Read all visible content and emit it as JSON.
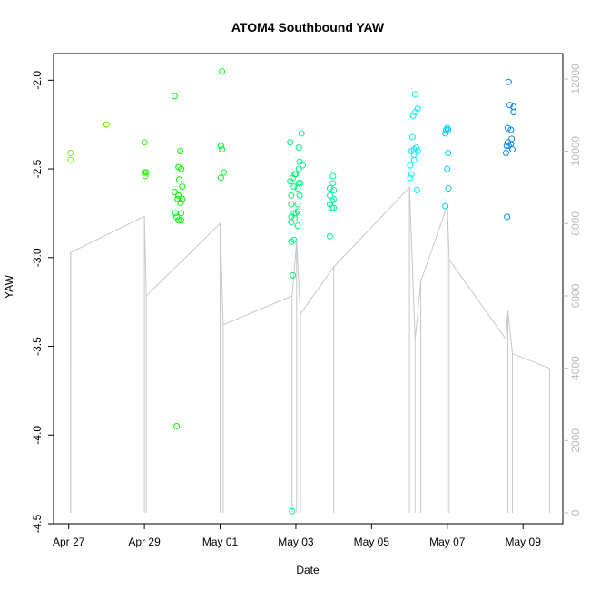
{
  "chart_data": {
    "type": "scatter",
    "title": "ATOM4 Southbound YAW",
    "xlabel": "Date",
    "ylabel": "YAW",
    "x_unit": "days since Apr 27",
    "xlim": [
      -0.4,
      13.05
    ],
    "ylim": [
      -4.5,
      -1.85
    ],
    "y2lim": [
      -300,
      12700
    ],
    "x_ticks": [
      {
        "value": 0,
        "label": "Apr 27"
      },
      {
        "value": 2,
        "label": "Apr 29"
      },
      {
        "value": 4,
        "label": "May 01"
      },
      {
        "value": 6,
        "label": "May 03"
      },
      {
        "value": 8,
        "label": "May 05"
      },
      {
        "value": 10,
        "label": "May 07"
      },
      {
        "value": 12,
        "label": "May 09"
      }
    ],
    "y_ticks": [
      {
        "value": -4.5,
        "label": "-4.5"
      },
      {
        "value": -4.0,
        "label": "-4.0"
      },
      {
        "value": -3.5,
        "label": "-3.5"
      },
      {
        "value": -3.0,
        "label": "-3.0"
      },
      {
        "value": -2.5,
        "label": "-2.5"
      },
      {
        "value": -2.0,
        "label": "-2.0"
      }
    ],
    "y2_ticks": [
      {
        "value": 0,
        "label": "0"
      },
      {
        "value": 2000,
        "label": "2000"
      },
      {
        "value": 4000,
        "label": "4000"
      },
      {
        "value": 6000,
        "label": "6000"
      },
      {
        "value": 8000,
        "label": "8000"
      },
      {
        "value": 10000,
        "label": "10000"
      },
      {
        "value": 12000,
        "label": "12000"
      }
    ],
    "point_color_scale": "rainbow hue by date (green to blue)",
    "line_color": "#c8c8c8",
    "series": [
      {
        "name": "YAW",
        "axis": "left",
        "points": [
          [
            0.05,
            -2.41
          ],
          [
            0.05,
            -2.45
          ],
          [
            1.0,
            -2.25
          ],
          [
            2.0,
            -2.35
          ],
          [
            2.0,
            -2.52
          ],
          [
            2.02,
            -2.54
          ],
          [
            2.05,
            -2.52
          ],
          [
            2.8,
            -2.09
          ],
          [
            2.8,
            -2.63
          ],
          [
            2.82,
            -2.75
          ],
          [
            2.85,
            -2.77
          ],
          [
            2.85,
            -3.95
          ],
          [
            2.88,
            -2.67
          ],
          [
            2.9,
            -2.49
          ],
          [
            2.9,
            -2.65
          ],
          [
            2.9,
            -2.79
          ],
          [
            2.92,
            -2.56
          ],
          [
            2.95,
            -2.4
          ],
          [
            2.95,
            -2.69
          ],
          [
            2.97,
            -2.5
          ],
          [
            2.97,
            -2.75
          ],
          [
            2.97,
            -2.79
          ],
          [
            3.0,
            -2.6
          ],
          [
            3.0,
            -2.67
          ],
          [
            4.05,
            -1.95
          ],
          [
            4.02,
            -2.37
          ],
          [
            4.05,
            -2.39
          ],
          [
            4.02,
            -2.55
          ],
          [
            4.1,
            -2.52
          ],
          [
            5.85,
            -2.35
          ],
          [
            5.85,
            -2.57
          ],
          [
            5.88,
            -2.65
          ],
          [
            5.88,
            -2.7
          ],
          [
            5.88,
            -2.77
          ],
          [
            5.88,
            -2.8
          ],
          [
            5.88,
            -2.91
          ],
          [
            5.9,
            -4.43
          ],
          [
            5.92,
            -2.55
          ],
          [
            5.92,
            -3.1
          ],
          [
            5.95,
            -2.6
          ],
          [
            5.95,
            -2.75
          ],
          [
            5.95,
            -2.9
          ],
          [
            5.97,
            -2.53
          ],
          [
            5.97,
            -2.78
          ],
          [
            6.0,
            -2.53
          ],
          [
            6.0,
            -2.75
          ],
          [
            6.05,
            -2.61
          ],
          [
            6.05,
            -2.7
          ],
          [
            6.05,
            -2.74
          ],
          [
            6.05,
            -2.82
          ],
          [
            6.08,
            -2.38
          ],
          [
            6.08,
            -2.5
          ],
          [
            6.08,
            -2.58
          ],
          [
            6.1,
            -2.46
          ],
          [
            6.1,
            -2.65
          ],
          [
            6.12,
            -2.58
          ],
          [
            6.15,
            -2.3
          ],
          [
            6.18,
            -2.48
          ],
          [
            6.9,
            -2.61
          ],
          [
            6.9,
            -2.65
          ],
          [
            6.9,
            -2.7
          ],
          [
            6.9,
            -2.88
          ],
          [
            6.95,
            -2.68
          ],
          [
            6.95,
            -2.72
          ],
          [
            6.98,
            -2.54
          ],
          [
            6.98,
            -2.58
          ],
          [
            7.0,
            -2.62
          ],
          [
            7.0,
            -2.67
          ],
          [
            7.0,
            -2.72
          ],
          [
            9.02,
            -2.48
          ],
          [
            9.02,
            -2.55
          ],
          [
            9.05,
            -2.4
          ],
          [
            9.05,
            -2.53
          ],
          [
            9.08,
            -2.32
          ],
          [
            9.1,
            -2.2
          ],
          [
            9.12,
            -2.39
          ],
          [
            9.12,
            -2.42
          ],
          [
            9.12,
            -2.45
          ],
          [
            9.15,
            -2.08
          ],
          [
            9.15,
            -2.18
          ],
          [
            9.18,
            -2.38
          ],
          [
            9.2,
            -2.62
          ],
          [
            9.22,
            -2.16
          ],
          [
            9.22,
            -2.4
          ],
          [
            9.95,
            -2.3
          ],
          [
            9.95,
            -2.71
          ],
          [
            9.97,
            -2.28
          ],
          [
            10.0,
            -2.27
          ],
          [
            10.0,
            -2.5
          ],
          [
            10.02,
            -2.28
          ],
          [
            10.02,
            -2.41
          ],
          [
            10.03,
            -2.61
          ],
          [
            11.55,
            -2.41
          ],
          [
            11.57,
            -2.37
          ],
          [
            11.58,
            -2.77
          ],
          [
            11.6,
            -2.27
          ],
          [
            11.6,
            -2.35
          ],
          [
            11.62,
            -2.01
          ],
          [
            11.62,
            -2.37
          ],
          [
            11.65,
            -2.14
          ],
          [
            11.68,
            -2.28
          ],
          [
            11.68,
            -2.36
          ],
          [
            11.7,
            -2.33
          ],
          [
            11.72,
            -2.39
          ],
          [
            11.75,
            -2.15
          ],
          [
            11.75,
            -2.18
          ]
        ]
      },
      {
        "name": "Index",
        "axis": "right",
        "style": "line",
        "points": [
          [
            0.05,
            4000
          ],
          [
            0.05,
            7200
          ],
          [
            2.0,
            8200
          ],
          [
            2.05,
            6000
          ],
          [
            4.0,
            8000
          ],
          [
            4.08,
            5200
          ],
          [
            5.9,
            6000
          ],
          [
            6.02,
            7500
          ],
          [
            6.12,
            5500
          ],
          [
            7.0,
            6800
          ],
          [
            9.0,
            9000
          ],
          [
            9.15,
            4800
          ],
          [
            9.3,
            6400
          ],
          [
            10.0,
            8500
          ],
          [
            10.05,
            7000
          ],
          [
            11.55,
            4800
          ],
          [
            11.6,
            5600
          ],
          [
            11.72,
            4400
          ],
          [
            12.7,
            4000
          ]
        ]
      }
    ]
  }
}
